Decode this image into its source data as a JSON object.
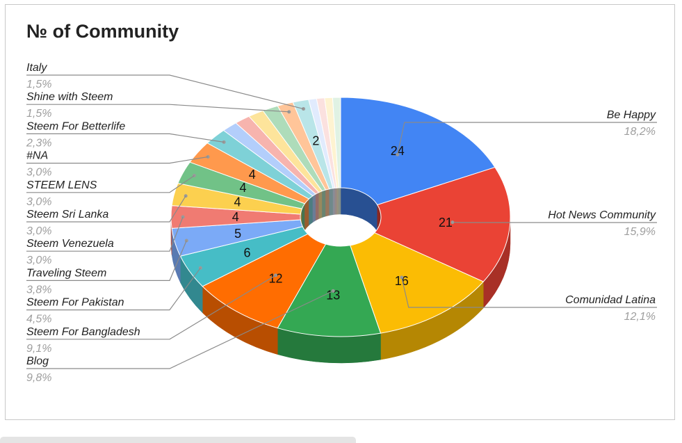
{
  "chart_data": {
    "type": "pie",
    "variant": "3d-donut",
    "title": "№ of Community",
    "legend": "labels-with-leader-lines",
    "slices": [
      {
        "name": "Be Happy",
        "value": 24,
        "percent": "18,2%",
        "color": "#4285f4"
      },
      {
        "name": "Hot News Community",
        "value": 21,
        "percent": "15,9%",
        "color": "#ea4335"
      },
      {
        "name": "Comunidad Latina",
        "value": 16,
        "percent": "12,1%",
        "color": "#fbbc04"
      },
      {
        "name": "Blog",
        "value": 13,
        "percent": "9,8%",
        "color": "#34a853"
      },
      {
        "name": "Steem For Bangladesh",
        "value": 12,
        "percent": "9,1%",
        "color": "#ff6d01"
      },
      {
        "name": "Steem For Pakistan",
        "value": 6,
        "percent": "4,5%",
        "color": "#46bdc6"
      },
      {
        "name": "Traveling Steem",
        "value": 5,
        "percent": "3,8%",
        "color": "#7baaf7"
      },
      {
        "name": "Steem Venezuela",
        "value": 4,
        "percent": "3,0%",
        "color": "#f07b72"
      },
      {
        "name": "Steem Sri Lanka",
        "value": 4,
        "percent": "3,0%",
        "color": "#fcd04f"
      },
      {
        "name": "STEEM LENS",
        "value": 4,
        "percent": "3,0%",
        "color": "#71c287"
      },
      {
        "name": "#NA",
        "value": 4,
        "percent": "3,0%",
        "color": "#ff994d"
      },
      {
        "name": "Steem For Betterlife",
        "value": 3,
        "percent": "2,3%",
        "color": "#7ed1d7"
      },
      {
        "name": "",
        "value": 2,
        "percent": "",
        "color": "#b3cefb"
      },
      {
        "name": "",
        "value": 2,
        "percent": "",
        "color": "#f7b4ae"
      },
      {
        "name": "",
        "value": 2,
        "percent": "",
        "color": "#fde49b"
      },
      {
        "name": "",
        "value": 2,
        "percent": "",
        "color": "#aedcba"
      },
      {
        "name": "Shine with Steem",
        "value": 2,
        "percent": "1,5%",
        "color": "#ffc599"
      },
      {
        "name": "Italy",
        "value": 2,
        "percent": "1,5%",
        "color": "#b9e5e8"
      },
      {
        "name": "",
        "value": 1,
        "percent": "",
        "color": "#e1ebfd"
      },
      {
        "name": "",
        "value": 1,
        "percent": "",
        "color": "#fbe1df"
      },
      {
        "name": "",
        "value": 1,
        "percent": "",
        "color": "#fef3d1"
      },
      {
        "name": "",
        "value": 1,
        "percent": "",
        "color": "#e0f2e4"
      }
    ],
    "value_labels": [
      {
        "slice": 0,
        "text": "24"
      },
      {
        "slice": 1,
        "text": "21"
      },
      {
        "slice": 2,
        "text": "16"
      },
      {
        "slice": 3,
        "text": "13"
      },
      {
        "slice": 4,
        "text": "12"
      },
      {
        "slice": 5,
        "text": "6"
      },
      {
        "slice": 6,
        "text": "5"
      },
      {
        "slice": 7,
        "text": "4"
      },
      {
        "slice": 8,
        "text": "4"
      },
      {
        "slice": 9,
        "text": "4"
      },
      {
        "slice": 10,
        "text": "4"
      },
      {
        "slice": 17,
        "text": "2"
      }
    ]
  }
}
